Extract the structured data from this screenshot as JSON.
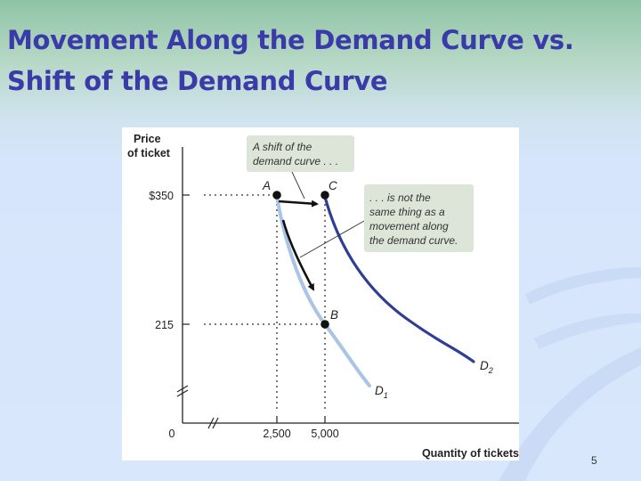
{
  "slide": {
    "title_line1": "Movement Along the Demand Curve vs.",
    "title_line2": "Shift of the Demand Curve",
    "page_number": "5"
  },
  "diagram": {
    "y_axis_label_line1": "Price",
    "y_axis_label_line2": "of ticket",
    "x_axis_label": "Quantity of tickets",
    "origin_label": "0",
    "y_ticks": [
      "$350",
      "215"
    ],
    "x_ticks": [
      "2,500",
      "5,000"
    ],
    "points": {
      "a": "A",
      "b": "B",
      "c": "C"
    },
    "curves": {
      "d1": "D",
      "d1_sub": "1",
      "d2": "D",
      "d2_sub": "2"
    },
    "callout_shift": [
      "A shift of the",
      "demand curve . . ."
    ],
    "callout_movement": [
      ". . . is not the",
      "same thing as a",
      "movement along",
      "the demand curve."
    ],
    "colors": {
      "d1": "#a9c4e4",
      "d2": "#2e3e94",
      "callout_bg": "#dde5d8",
      "title": "#3a3aa8"
    }
  }
}
